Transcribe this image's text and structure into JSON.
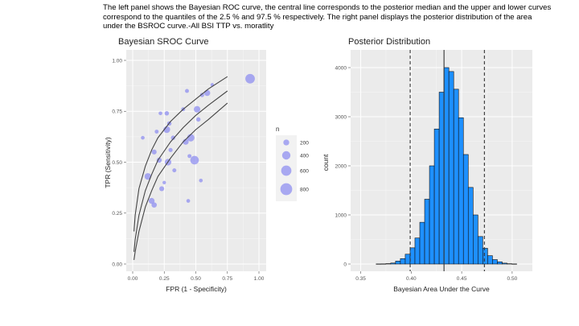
{
  "caption": "The left panel shows the Bayesian ROC curve, the central line corresponds to the posterior median and the upper and lower curves correspond to the quantiles of the 2.5 % and 97.5 % respectively. The right panel displays the posterior distribution of the area under the BSROC curve.-All BSI TTP vs. moratlity",
  "chart_data": [
    {
      "type": "scatter",
      "title": "Bayesian SROC Curve",
      "xlabel": "FPR (1 - Specificity)",
      "ylabel": "TPR (Sensitivity)",
      "xlim": [
        0,
        1
      ],
      "ylim": [
        0,
        1
      ],
      "xticks": [
        "0.00",
        "0.25",
        "0.50",
        "0.75",
        "1.00"
      ],
      "yticks": [
        "0.00",
        "0.25",
        "0.50",
        "0.75",
        "1.00"
      ],
      "grid": true,
      "point_color": "#8f8ff0",
      "legend": {
        "title": "n",
        "placement": "right",
        "entries": [
          {
            "label": "200",
            "n": 200
          },
          {
            "label": "400",
            "n": 400
          },
          {
            "label": "600",
            "n": 600
          },
          {
            "label": "800",
            "n": 800
          }
        ]
      },
      "points": [
        {
          "x": 0.08,
          "y": 0.62,
          "n": 80
        },
        {
          "x": 0.12,
          "y": 0.43,
          "n": 250
        },
        {
          "x": 0.15,
          "y": 0.31,
          "n": 200
        },
        {
          "x": 0.17,
          "y": 0.29,
          "n": 160
        },
        {
          "x": 0.17,
          "y": 0.55,
          "n": 140
        },
        {
          "x": 0.19,
          "y": 0.65,
          "n": 90
        },
        {
          "x": 0.21,
          "y": 0.51,
          "n": 150
        },
        {
          "x": 0.22,
          "y": 0.74,
          "n": 80
        },
        {
          "x": 0.23,
          "y": 0.37,
          "n": 140
        },
        {
          "x": 0.25,
          "y": 0.4,
          "n": 70
        },
        {
          "x": 0.27,
          "y": 0.66,
          "n": 260
        },
        {
          "x": 0.27,
          "y": 0.74,
          "n": 110
        },
        {
          "x": 0.28,
          "y": 0.5,
          "n": 250
        },
        {
          "x": 0.29,
          "y": 0.69,
          "n": 110
        },
        {
          "x": 0.3,
          "y": 0.56,
          "n": 100
        },
        {
          "x": 0.32,
          "y": 0.62,
          "n": 110
        },
        {
          "x": 0.33,
          "y": 0.46,
          "n": 90
        },
        {
          "x": 0.4,
          "y": 0.76,
          "n": 90
        },
        {
          "x": 0.42,
          "y": 0.6,
          "n": 200
        },
        {
          "x": 0.43,
          "y": 0.85,
          "n": 90
        },
        {
          "x": 0.44,
          "y": 0.31,
          "n": 80
        },
        {
          "x": 0.45,
          "y": 0.53,
          "n": 90
        },
        {
          "x": 0.46,
          "y": 0.62,
          "n": 310
        },
        {
          "x": 0.49,
          "y": 0.51,
          "n": 420
        },
        {
          "x": 0.51,
          "y": 0.76,
          "n": 240
        },
        {
          "x": 0.52,
          "y": 0.71,
          "n": 110
        },
        {
          "x": 0.54,
          "y": 0.41,
          "n": 80
        },
        {
          "x": 0.55,
          "y": 0.83,
          "n": 100
        },
        {
          "x": 0.59,
          "y": 0.84,
          "n": 210
        },
        {
          "x": 0.63,
          "y": 0.88,
          "n": 70
        },
        {
          "x": 0.93,
          "y": 0.91,
          "n": 520
        }
      ],
      "curves": [
        {
          "name": "97.5% quantile",
          "x": [
            0.01,
            0.02,
            0.05,
            0.1,
            0.15,
            0.2,
            0.3,
            0.4,
            0.5,
            0.6,
            0.75
          ],
          "y": [
            0.16,
            0.24,
            0.37,
            0.48,
            0.56,
            0.62,
            0.7,
            0.76,
            0.81,
            0.86,
            0.92
          ]
        },
        {
          "name": "median",
          "x": [
            0.01,
            0.02,
            0.05,
            0.1,
            0.15,
            0.2,
            0.3,
            0.4,
            0.5,
            0.6,
            0.75
          ],
          "y": [
            0.06,
            0.12,
            0.24,
            0.36,
            0.44,
            0.51,
            0.6,
            0.67,
            0.73,
            0.78,
            0.85
          ]
        },
        {
          "name": "2.5% quantile",
          "x": [
            0.01,
            0.02,
            0.05,
            0.1,
            0.15,
            0.2,
            0.3,
            0.4,
            0.5,
            0.6,
            0.75
          ],
          "y": [
            0.02,
            0.06,
            0.16,
            0.28,
            0.36,
            0.43,
            0.52,
            0.6,
            0.66,
            0.71,
            0.79
          ]
        }
      ]
    },
    {
      "type": "bar",
      "title": "Posterior Distribution",
      "xlabel": "Bayesian Area Under the Curve",
      "ylabel": "count",
      "xlim": [
        0.34,
        0.52
      ],
      "ylim": [
        0,
        4200
      ],
      "xticks": [
        0.35,
        0.4,
        0.45,
        0.5
      ],
      "xtick_labels": [
        "0.35",
        "0.40",
        "0.45",
        "0.50"
      ],
      "yticks": [
        0,
        1000,
        2000,
        3000,
        4000
      ],
      "ytick_labels": [
        "0",
        "1000",
        "2000",
        "3000",
        "4000"
      ],
      "grid": true,
      "fill_color": "#1e90ff",
      "bin_start": 0.3653,
      "bin_width": 0.0048,
      "counts": [
        2,
        3,
        8,
        20,
        60,
        110,
        200,
        330,
        530,
        850,
        1320,
        2000,
        2750,
        3500,
        4000,
        3920,
        3560,
        2980,
        2230,
        1560,
        1000,
        560,
        320,
        170,
        90,
        45,
        18,
        6,
        2
      ],
      "vlines": [
        {
          "x": 0.399,
          "style": "dashed"
        },
        {
          "x": 0.4325,
          "style": "solid"
        },
        {
          "x": 0.4725,
          "style": "dashed"
        }
      ]
    }
  ]
}
